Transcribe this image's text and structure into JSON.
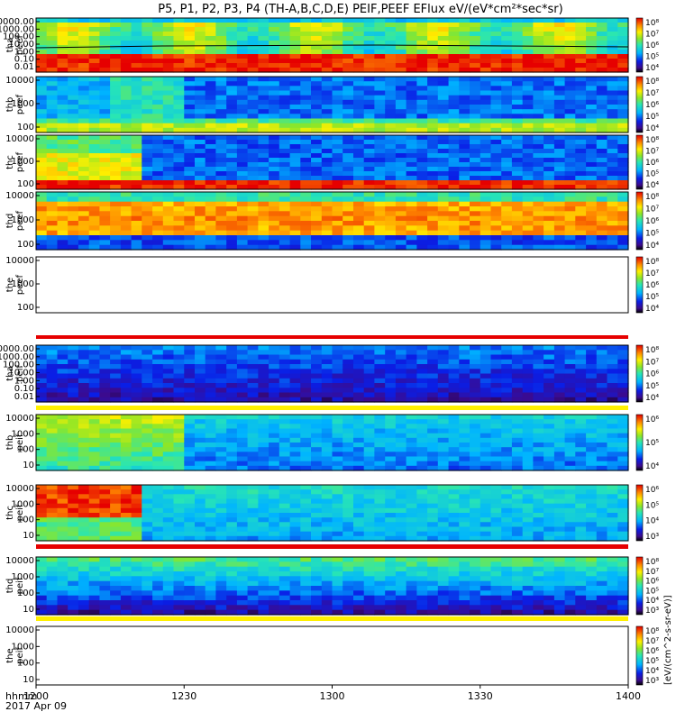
{
  "chart_data": {
    "type": "heatmap",
    "title": "P5, P1, P2, P3, P4 (TH-A,B,C,D,E) PEIF,PEEF EFlux eV/(eV*cm²*sec*sr)",
    "x_axis": {
      "corner_label_1": "hhmm",
      "corner_label_2": "2017 Apr 09",
      "range": [
        "1200",
        "1400"
      ],
      "tick_labels": [
        "1200",
        "1230",
        "1300",
        "1330",
        "1400"
      ]
    },
    "colorbar_unit_label": "[eV/(cm^2-s-sr-eV)]",
    "panels": [
      {
        "probe": "tha",
        "product": "peef",
        "ylabel": "tha\npeef",
        "yticks": [
          "10000.00",
          "1000.00",
          "100.00",
          "10.00",
          "1.00",
          "0.10",
          "0.01"
        ],
        "cbar_ticks": [
          "10⁸",
          "10⁷",
          "10⁶",
          "10⁵",
          "10⁴"
        ],
        "appearance": "red lower band with dark line, upper spectrum green-yellow-cyan"
      },
      {
        "probe": "thb",
        "product": "peef",
        "ylabel": "thb\npeef",
        "yticks": [
          "10000",
          "1000",
          "100"
        ],
        "cbar_ticks": [
          "10⁸",
          "10⁷",
          "10⁶",
          "10⁵",
          "10⁴"
        ],
        "appearance": "blue/cyan upper, green-yellow bottom band"
      },
      {
        "probe": "thc",
        "product": "peef",
        "ylabel": "thc\npeef",
        "yticks": [
          "10000",
          "1000",
          "100"
        ],
        "cbar_ticks": [
          "10⁸",
          "10⁷",
          "10⁶",
          "10⁵",
          "10⁴"
        ],
        "appearance": "yellow-green early (to ~12:17), blue later, red bottom band"
      },
      {
        "probe": "thd",
        "product": "peef",
        "ylabel": "thd\npeef",
        "yticks": [
          "10000",
          "1000",
          "100"
        ],
        "cbar_ticks": [
          "10⁸",
          "10⁷",
          "10⁶",
          "10⁵",
          "10⁴"
        ],
        "appearance": "orange-red broad band, blue low energies"
      },
      {
        "probe": "the",
        "product": "peef",
        "ylabel": "the\npeef",
        "yticks": [
          "10000",
          "1000",
          "100"
        ],
        "cbar_ticks": [
          "10⁸",
          "10⁷",
          "10⁶",
          "10⁵",
          "10⁴"
        ],
        "appearance": "no data"
      },
      {
        "probe": "tha",
        "product": "peif",
        "ylabel": "tha\npeif",
        "yticks": [
          "10000.00",
          "1000.00",
          "100.00",
          "10.00",
          "1.00",
          "0.10",
          "0.01"
        ],
        "cbar_ticks": [
          "10⁸",
          "10⁷",
          "10⁶",
          "10⁵",
          "10⁴"
        ],
        "appearance": "dark blue/purple/black"
      },
      {
        "probe": "thb",
        "product": "peif",
        "ylabel": "thb\npeif",
        "yticks": [
          "10000",
          "1000",
          "100",
          "10"
        ],
        "cbar_ticks": [
          "10⁶",
          "10⁵",
          "10⁴"
        ],
        "appearance": "green-yellow early (to ~12:25), blue/cyan blocks later"
      },
      {
        "probe": "thc",
        "product": "peif",
        "ylabel": "thc\npeif",
        "yticks": [
          "10000",
          "1000",
          "100",
          "10"
        ],
        "cbar_ticks": [
          "10⁶",
          "10⁵",
          "10⁴",
          "10³"
        ],
        "appearance": "red-orange early (to ~12:17), cyan-blue blocks later"
      },
      {
        "probe": "thd",
        "product": "peif",
        "ylabel": "thd\npeif",
        "yticks": [
          "10000",
          "1000",
          "100",
          "10"
        ],
        "cbar_ticks": [
          "10⁸",
          "10⁷",
          "10⁶",
          "10⁵",
          "10⁴",
          "10³"
        ],
        "appearance": "green upper, blue-purple lower"
      },
      {
        "probe": "the",
        "product": "peif",
        "ylabel": "the\npeif",
        "yticks": [
          "10000",
          "1000",
          "100",
          "10"
        ],
        "cbar_ticks": [
          "10⁸",
          "10⁷",
          "10⁶",
          "10⁵",
          "10⁴",
          "10³"
        ],
        "appearance": "no data"
      }
    ]
  }
}
